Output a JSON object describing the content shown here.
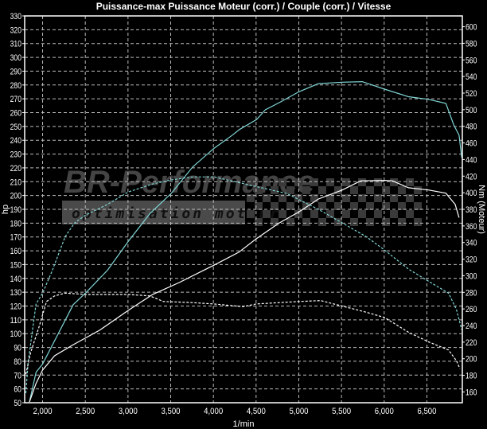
{
  "chart_data": {
    "type": "line",
    "title": "Puissance-max Puissance Moteur (corr.) / Couple (corr.) / Vitesse",
    "xlabel": "1/min",
    "ylabel": "hp",
    "ylabel_right": "Nm (Moteur)",
    "xlim": [
      1790,
      6915
    ],
    "ylim": [
      50,
      330
    ],
    "ylim_right": [
      147,
      613
    ],
    "x_ticks": [
      2000,
      2500,
      3000,
      3500,
      4000,
      4500,
      5000,
      5500,
      6000,
      6500
    ],
    "x_tick_labels": [
      "2,000",
      "2,500",
      "3,000",
      "3,500",
      "4,000",
      "4,500",
      "5,000",
      "5,500",
      "6,000",
      "6,500"
    ],
    "y_ticks": [
      50,
      60,
      70,
      80,
      90,
      100,
      110,
      120,
      130,
      140,
      150,
      160,
      170,
      180,
      190,
      200,
      210,
      220,
      230,
      240,
      250,
      260,
      270,
      280,
      290,
      300,
      310,
      320,
      330
    ],
    "y_ticks_right": [
      160,
      180,
      200,
      220,
      240,
      260,
      280,
      300,
      320,
      340,
      360,
      380,
      400,
      420,
      440,
      460,
      480,
      500,
      520,
      540,
      560,
      580,
      600
    ],
    "grid": true,
    "background": "#000000",
    "series": [
      {
        "axis": "left",
        "style": "solid",
        "color": "#80d4d4",
        "points": [
          [
            1846,
            50.6
          ],
          [
            1923,
            72
          ],
          [
            2000,
            78
          ],
          [
            2358,
            121
          ],
          [
            2513,
            130
          ],
          [
            2761,
            146
          ],
          [
            3006,
            167
          ],
          [
            3258,
            187
          ],
          [
            3507,
            201.6
          ],
          [
            3756,
            220.6
          ],
          [
            4004,
            234
          ],
          [
            4222,
            243.7
          ],
          [
            4304,
            247.7
          ],
          [
            4506,
            255
          ],
          [
            4608,
            262
          ],
          [
            4794,
            268
          ],
          [
            4997,
            275
          ],
          [
            5230,
            281
          ],
          [
            5510,
            282
          ],
          [
            5743,
            282.4
          ],
          [
            6004,
            277
          ],
          [
            6284,
            271.5
          ],
          [
            6517,
            269.6
          ],
          [
            6722,
            266.7
          ],
          [
            6815,
            251
          ],
          [
            6877,
            243.7
          ],
          [
            6908,
            227.5
          ]
        ]
      },
      {
        "axis": "left",
        "style": "solid",
        "color": "#ffffff",
        "points": [
          [
            1846,
            50.6
          ],
          [
            1923,
            64
          ],
          [
            2000,
            73.6
          ],
          [
            2140,
            84
          ],
          [
            2358,
            92
          ],
          [
            2668,
            102.5
          ],
          [
            3006,
            117
          ],
          [
            3289,
            128.4
          ],
          [
            3600,
            137
          ],
          [
            4004,
            149.5
          ],
          [
            4299,
            159
          ],
          [
            4502,
            168.7
          ],
          [
            4767,
            180
          ],
          [
            4997,
            188
          ],
          [
            5230,
            197.5
          ],
          [
            5510,
            204
          ],
          [
            5725,
            210.6
          ],
          [
            6004,
            211
          ],
          [
            6097,
            210.6
          ],
          [
            6284,
            205.6
          ],
          [
            6517,
            204
          ],
          [
            6722,
            201.7
          ],
          [
            6831,
            193.6
          ],
          [
            6877,
            184
          ]
        ]
      },
      {
        "axis": "right",
        "style": "dashed",
        "color": "#80d4d4",
        "points": [
          [
            1804,
            158.6
          ],
          [
            1829,
            194.4
          ],
          [
            1923,
            266
          ],
          [
            2000,
            279
          ],
          [
            2109,
            305
          ],
          [
            2264,
            347
          ],
          [
            2373,
            363.5
          ],
          [
            2503,
            373
          ],
          [
            2761,
            386
          ],
          [
            3006,
            401
          ],
          [
            3289,
            410.6
          ],
          [
            3507,
            415.5
          ],
          [
            3756,
            419
          ],
          [
            4004,
            419
          ],
          [
            4222,
            414
          ],
          [
            4860,
            399
          ],
          [
            5230,
            380
          ],
          [
            5510,
            363.5
          ],
          [
            5790,
            347
          ],
          [
            6004,
            331
          ],
          [
            6284,
            308
          ],
          [
            6517,
            293.5
          ],
          [
            6753,
            279
          ],
          [
            6846,
            259.4
          ],
          [
            6908,
            235
          ]
        ]
      },
      {
        "axis": "right",
        "style": "dashed",
        "color": "#ffffff",
        "points": [
          [
            1804,
            181.4
          ],
          [
            1860,
            207.4
          ],
          [
            1953,
            236.7
          ],
          [
            2046,
            269
          ],
          [
            2140,
            275.7
          ],
          [
            2264,
            279
          ],
          [
            2513,
            277.4
          ],
          [
            2761,
            277.4
          ],
          [
            3006,
            277.4
          ],
          [
            3258,
            275.7
          ],
          [
            3414,
            269
          ],
          [
            3756,
            267.6
          ],
          [
            4004,
            266
          ],
          [
            4346,
            262.7
          ],
          [
            4502,
            266
          ],
          [
            4997,
            269
          ],
          [
            5257,
            270
          ],
          [
            5535,
            262.7
          ],
          [
            5790,
            256
          ],
          [
            6004,
            249.7
          ],
          [
            6284,
            232
          ],
          [
            6517,
            220.4
          ],
          [
            6753,
            210.6
          ],
          [
            6846,
            197.6
          ],
          [
            6886,
            188
          ]
        ]
      }
    ]
  },
  "logo": {
    "brand": "BR-Performance",
    "tagline": "optimisation moteur"
  }
}
